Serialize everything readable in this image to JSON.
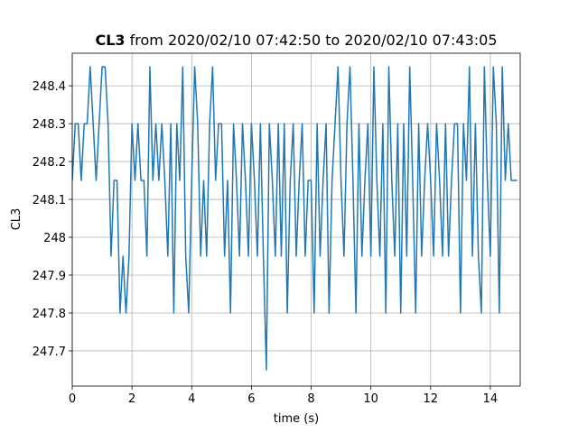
{
  "chart_data": {
    "type": "line",
    "title": {
      "series": "CL3",
      "range": "from 2020/02/10 07:42:50 to 2020/02/10 07:43:05"
    },
    "xlabel": "time (s)",
    "ylabel": "CL3",
    "x": [
      0,
      0.1,
      0.2,
      0.3,
      0.4,
      0.5,
      0.6,
      0.7,
      0.8,
      0.9,
      1,
      1.1,
      1.2,
      1.3,
      1.4,
      1.5,
      1.6,
      1.7,
      1.8,
      1.9,
      2,
      2.1,
      2.2,
      2.3,
      2.4,
      2.5,
      2.6,
      2.7,
      2.8,
      2.9,
      3,
      3.1,
      3.2,
      3.3,
      3.4,
      3.5,
      3.6,
      3.7,
      3.8,
      3.9,
      4,
      4.1,
      4.2,
      4.3,
      4.4,
      4.5,
      4.6,
      4.7,
      4.8,
      4.9,
      5,
      5.1,
      5.2,
      5.3,
      5.4,
      5.5,
      5.6,
      5.7,
      5.8,
      5.9,
      6,
      6.1,
      6.2,
      6.3,
      6.4,
      6.5,
      6.6,
      6.7,
      6.8,
      6.9,
      7,
      7.1,
      7.2,
      7.3,
      7.4,
      7.5,
      7.6,
      7.7,
      7.8,
      7.9,
      8,
      8.1,
      8.2,
      8.3,
      8.4,
      8.5,
      8.6,
      8.7,
      8.8,
      8.9,
      9,
      9.1,
      9.2,
      9.3,
      9.4,
      9.5,
      9.6,
      9.7,
      9.8,
      9.9,
      10,
      10.1,
      10.2,
      10.3,
      10.4,
      10.5,
      10.6,
      10.7,
      10.8,
      10.9,
      11,
      11.1,
      11.2,
      11.3,
      11.4,
      11.5,
      11.6,
      11.7,
      11.8,
      11.9,
      12,
      12.1,
      12.2,
      12.3,
      12.4,
      12.5,
      12.6,
      12.7,
      12.8,
      12.9,
      13,
      13.1,
      13.2,
      13.3,
      13.4,
      13.5,
      13.6,
      13.7,
      13.8,
      13.9,
      14,
      14.1,
      14.2,
      14.3,
      14.4,
      14.5,
      14.6,
      14.7,
      14.8,
      14.9
    ],
    "series": [
      {
        "name": "CL3",
        "color": "#1f77b4",
        "values": [
          248.15,
          248.3,
          248.3,
          248.15,
          248.3,
          248.3,
          248.45,
          248.3,
          248.15,
          248.3,
          248.45,
          248.45,
          248.3,
          247.95,
          248.15,
          248.15,
          247.8,
          247.95,
          247.8,
          247.95,
          248.3,
          248.15,
          248.3,
          248.15,
          248.15,
          247.95,
          248.45,
          248.15,
          248.3,
          248.15,
          248.3,
          248.15,
          247.95,
          248.3,
          247.8,
          248.3,
          248.15,
          248.45,
          247.95,
          247.8,
          248.15,
          248.45,
          248.3,
          247.95,
          248.15,
          247.95,
          248.3,
          248.45,
          248.15,
          248.3,
          248.3,
          247.95,
          248.15,
          247.8,
          248.3,
          248.15,
          247.95,
          248.3,
          248.15,
          247.95,
          248.3,
          248.15,
          247.95,
          248.3,
          247.95,
          247.65,
          248.3,
          248.15,
          247.95,
          248.3,
          247.95,
          248.3,
          247.8,
          248.15,
          248.3,
          247.95,
          248.15,
          248.3,
          247.95,
          248.15,
          248.15,
          247.8,
          248.3,
          247.95,
          248.15,
          248.3,
          247.8,
          248.15,
          248.3,
          248.45,
          248.15,
          247.95,
          248.3,
          248.45,
          248.15,
          247.8,
          248.3,
          247.95,
          248.15,
          248.3,
          247.95,
          248.45,
          248.15,
          247.95,
          248.3,
          247.8,
          248.45,
          248.15,
          247.95,
          248.3,
          247.8,
          248.3,
          247.95,
          248.45,
          248.15,
          247.8,
          248.3,
          247.95,
          248.15,
          248.3,
          248.15,
          247.95,
          248.3,
          248.15,
          247.95,
          248.3,
          247.95,
          248.15,
          248.3,
          248.3,
          247.8,
          248.3,
          248.15,
          248.45,
          247.95,
          248.3,
          247.95,
          247.8,
          248.45,
          248.15,
          247.95,
          248.45,
          248.3,
          247.8,
          248.45,
          248.15,
          248.3,
          248.15,
          248.15,
          248.15
        ]
      }
    ],
    "xlim": [
      0,
      15
    ],
    "ylim": [
      247.607,
      248.486
    ],
    "xticks": [
      0,
      2,
      4,
      6,
      8,
      10,
      12,
      14
    ],
    "yticks": [
      247.7,
      247.8,
      247.9,
      248,
      248.1,
      248.2,
      248.3,
      248.4
    ],
    "grid": true
  }
}
